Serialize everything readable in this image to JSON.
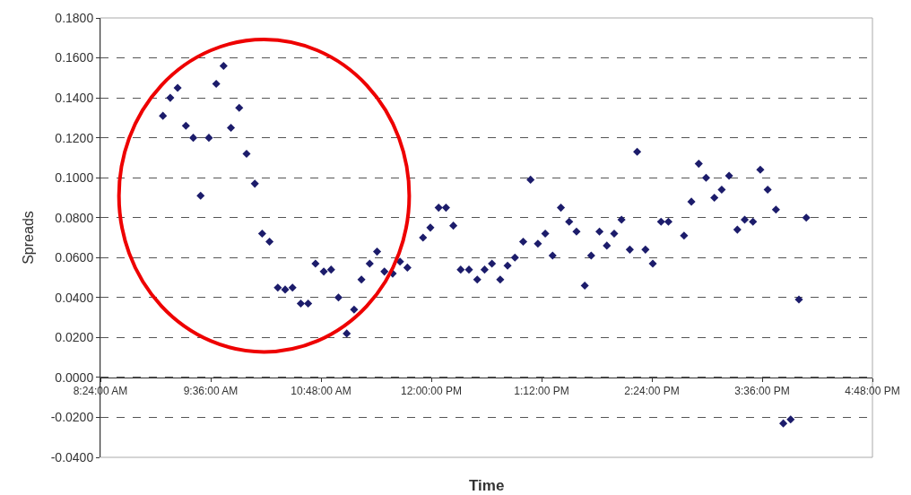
{
  "chart_data": {
    "type": "scatter",
    "xlabel": "Time",
    "ylabel": "Spreads",
    "marker": "diamond",
    "grid": "y",
    "x": [
      9.08,
      9.16,
      9.24,
      9.33,
      9.41,
      9.49,
      9.58,
      9.66,
      9.74,
      9.82,
      9.91,
      9.99,
      10.08,
      10.16,
      10.24,
      10.33,
      10.41,
      10.49,
      10.58,
      10.66,
      10.74,
      10.83,
      10.91,
      10.99,
      11.08,
      11.16,
      11.24,
      11.33,
      11.41,
      11.49,
      11.58,
      11.66,
      11.74,
      11.91,
      11.99,
      12.08,
      12.16,
      12.24,
      12.32,
      12.41,
      12.5,
      12.58,
      12.66,
      12.75,
      12.83,
      12.91,
      13.0,
      13.08,
      13.16,
      13.24,
      13.32,
      13.41,
      13.5,
      13.58,
      13.67,
      13.74,
      13.83,
      13.91,
      13.99,
      14.07,
      14.16,
      14.24,
      14.33,
      14.41,
      14.5,
      14.58,
      14.75,
      14.83,
      14.91,
      14.99,
      15.08,
      15.16,
      15.24,
      15.33,
      15.41,
      15.5,
      15.58,
      15.66,
      15.75,
      15.83,
      15.91,
      16.0,
      16.08
    ],
    "series": [
      {
        "color": "#1c1c6b",
        "values": [
          0.131,
          0.14,
          0.145,
          0.126,
          0.12,
          0.091,
          0.12,
          0.147,
          0.156,
          0.125,
          0.135,
          0.112,
          0.097,
          0.072,
          0.068,
          0.045,
          0.044,
          0.045,
          0.037,
          0.037,
          0.057,
          0.053,
          0.054,
          0.04,
          0.022,
          0.034,
          0.049,
          0.057,
          0.063,
          0.053,
          0.052,
          0.058,
          0.055,
          0.07,
          0.075,
          0.085,
          0.085,
          0.076,
          0.054,
          0.054,
          0.049,
          0.054,
          0.057,
          0.049,
          0.056,
          0.06,
          0.068,
          0.099,
          0.067,
          0.072,
          0.061,
          0.085,
          0.078,
          0.073,
          0.046,
          0.061,
          0.073,
          0.066,
          0.072,
          0.079,
          0.064,
          0.113,
          0.064,
          0.057,
          0.078,
          0.078,
          0.071,
          0.088,
          0.107,
          0.1,
          0.09,
          0.094,
          0.101,
          0.074,
          0.079,
          0.078,
          0.104,
          0.094,
          0.084,
          -0.023,
          -0.021,
          0.039,
          0.08
        ]
      }
    ],
    "xlim": [
      8.4,
      16.8
    ],
    "xticks": [
      {
        "value": 8.4,
        "label": "8:24:00 AM"
      },
      {
        "value": 9.6,
        "label": "9:36:00 AM"
      },
      {
        "value": 10.8,
        "label": "10:48:00 AM"
      },
      {
        "value": 12.0,
        "label": "12:00:00 PM"
      },
      {
        "value": 13.2,
        "label": "1:12:00 PM"
      },
      {
        "value": 14.4,
        "label": "2:24:00 PM"
      },
      {
        "value": 15.6,
        "label": "3:36:00 PM"
      },
      {
        "value": 16.8,
        "label": "4:48:00 PM"
      }
    ],
    "ylim": [
      -0.04,
      0.18
    ],
    "yticks": [
      {
        "value": -0.04,
        "label": "-0.0400"
      },
      {
        "value": -0.02,
        "label": "-0.0200"
      },
      {
        "value": 0,
        "label": "0.0000"
      },
      {
        "value": 0.02,
        "label": "0.0200"
      },
      {
        "value": 0.04,
        "label": "0.0400"
      },
      {
        "value": 0.06,
        "label": "0.0600"
      },
      {
        "value": 0.08,
        "label": "0.0800"
      },
      {
        "value": 0.1,
        "label": "0.1000"
      },
      {
        "value": 0.12,
        "label": "0.1200"
      },
      {
        "value": 0.14,
        "label": "0.1400"
      },
      {
        "value": 0.16,
        "label": "0.1600"
      },
      {
        "value": 0.18,
        "label": "0.1800"
      }
    ]
  }
}
